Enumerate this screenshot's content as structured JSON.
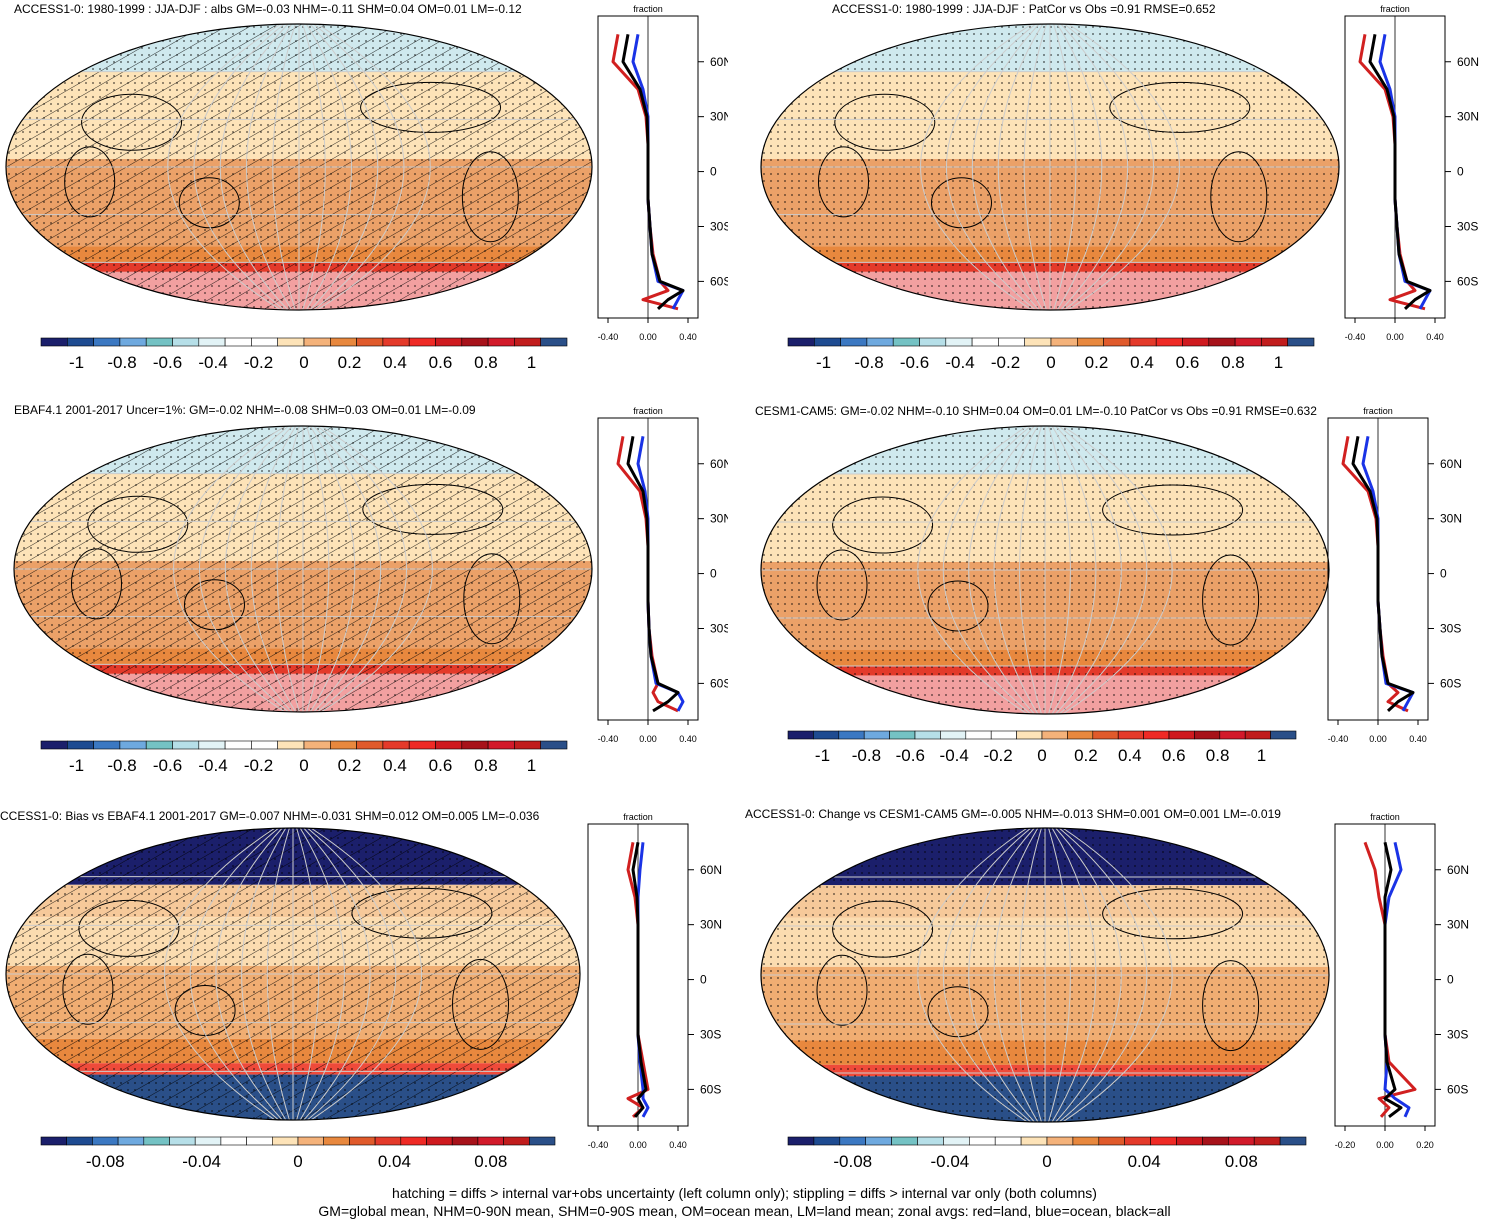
{
  "colors": {
    "palette": [
      "#1b1f6b",
      "#1e4b91",
      "#3b78c2",
      "#6ea9df",
      "#74c2c4",
      "#b6dfe8",
      "#e2f3f6",
      "#ffffff",
      "#ffffff",
      "#fde3b8",
      "#f4b27a",
      "#e8883e",
      "#e05a2b",
      "#e43a2a",
      "#ef2a25",
      "#cf1a1f",
      "#a7121a",
      "#d21a2a",
      "#c11d1d",
      "#2a4f88"
    ],
    "land_line": "#d12020",
    "ocean_line": "#1a33e6",
    "all_line": "#000000",
    "band_high_lat": "#fde3b8",
    "band_mid": "#fde3b8",
    "band_trop": "#e89a5a",
    "band_south": "#e8883e",
    "band_antarctic": "#e43a2a",
    "panel_bias": "#e8a060",
    "panel_blue": "#1b1f6b"
  },
  "panels": [
    {
      "title": "ACCESS1-0: 1980-1999 : JJA-DJF : albs GM=-0.03 NHM=-0.11 SHM=0.04 OM=0.01 LM=-0.12",
      "hatch": true,
      "stipple": true,
      "kind": "mean"
    },
    {
      "title": "ACCESS1-0: 1980-1999 : JJA-DJF : PatCor vs Obs =0.91 RMSE=0.652",
      "hatch": false,
      "stipple": true,
      "kind": "mean"
    },
    {
      "title": "EBAF4.1 2001-2017 Uncer=1%: GM=-0.02 NHM=-0.08 SHM=0.03 OM=0.01 LM=-0.09",
      "hatch": true,
      "stipple": true,
      "kind": "mean"
    },
    {
      "title": "CESM1-CAM5: GM=-0.02 NHM=-0.10 SHM=0.04 OM=0.01 LM=-0.10 PatCor vs Obs =0.91 RMSE=0.632",
      "hatch": false,
      "stipple": true,
      "kind": "mean"
    },
    {
      "title": "CCESS1-0: Bias vs EBAF4.1 2001-2017 GM=-0.007 NHM=-0.031 SHM=0.012 OM=0.005 LM=-0.036",
      "hatch": true,
      "stipple": true,
      "kind": "diff"
    },
    {
      "title": "ACCESS1-0: Change vs CESM1-CAM5 GM=-0.005 NHM=-0.013 SHM=0.001 OM=0.001 LM=-0.019",
      "hatch": false,
      "stipple": true,
      "kind": "diff"
    }
  ],
  "zonal_axes": [
    {
      "ylabel_top": "fraction",
      "xticks": [
        "-0.40",
        "0.00",
        "0.40"
      ],
      "yticks": [
        "60N",
        "30N",
        "0",
        "30S",
        "60S"
      ]
    },
    {
      "ylabel_top": "fraction",
      "xticks": [
        "-0.40",
        "0.00",
        "0.40"
      ],
      "yticks": [
        "60N",
        "30N",
        "0",
        "30S",
        "60S"
      ]
    },
    {
      "ylabel_top": "fraction",
      "xticks": [
        "-0.40",
        "0.00",
        "0.40"
      ],
      "yticks": [
        "60N",
        "30N",
        "0",
        "30S",
        "60S"
      ]
    },
    {
      "ylabel_top": "fraction",
      "xticks": [
        "-0.40",
        "0.00",
        "0.40"
      ],
      "yticks": [
        "60N",
        "30N",
        "0",
        "30S",
        "60S"
      ]
    },
    {
      "ylabel_top": "fraction",
      "xticks": [
        "-0.40",
        "0.00",
        "0.40"
      ],
      "yticks": [
        "60N",
        "30N",
        "0",
        "30S",
        "60S"
      ]
    },
    {
      "ylabel_top": "fraction",
      "xticks": [
        "-0.20",
        "0.00",
        "0.20"
      ],
      "yticks": [
        "60N",
        "30N",
        "0",
        "30S",
        "60S"
      ]
    }
  ],
  "colorbars": [
    {
      "labels": [
        "-1",
        "-0.8",
        "-0.6",
        "-0.4",
        "-0.2",
        "0",
        "0.2",
        "0.4",
        "0.6",
        "0.8",
        "1"
      ]
    },
    {
      "labels": [
        "-1",
        "-0.8",
        "-0.6",
        "-0.4",
        "-0.2",
        "0",
        "0.2",
        "0.4",
        "0.6",
        "0.8",
        "1"
      ]
    },
    {
      "labels": [
        "-1",
        "-0.8",
        "-0.6",
        "-0.4",
        "-0.2",
        "0",
        "0.2",
        "0.4",
        "0.6",
        "0.8",
        "1"
      ]
    },
    {
      "labels": [
        "-1",
        "-0.8",
        "-0.6",
        "-0.4",
        "-0.2",
        "0",
        "0.2",
        "0.4",
        "0.6",
        "0.8",
        "1"
      ]
    },
    {
      "labels": [
        "-0.08",
        "-0.04",
        "0",
        "0.04",
        "0.08"
      ]
    },
    {
      "labels": [
        "-0.08",
        "-0.04",
        "0",
        "0.04",
        "0.08"
      ]
    }
  ],
  "footer": {
    "line1": "hatching = diffs > internal var+obs uncertainty (left column only); stippling = diffs > internal var only (both columns)",
    "line2": "GM=global mean, NHM=0-90N mean, SHM=0-90S mean, OM=ocean mean, LM=land mean; zonal avgs: red=land, blue=ocean, black=all"
  },
  "chart_data": [
    {
      "type": "heatmap",
      "title": "ACCESS1-0: 1980-1999 : JJA-DJF : albs GM=-0.03 NHM=-0.11 SHM=0.04 OM=0.01 LM=-0.12",
      "zonal_lat": [
        75,
        60,
        45,
        30,
        15,
        0,
        -15,
        -30,
        -45,
        -60,
        -65,
        -70,
        -75
      ],
      "zonal_land": [
        -0.3,
        -0.35,
        -0.1,
        -0.02,
        0.0,
        0.0,
        0.0,
        0.02,
        0.05,
        0.12,
        0.2,
        -0.05,
        0.3
      ],
      "zonal_ocean": [
        -0.1,
        -0.15,
        -0.05,
        0.0,
        0.0,
        0.0,
        0.0,
        0.02,
        0.04,
        0.1,
        0.35,
        0.3,
        0.25
      ],
      "zonal_all": [
        -0.2,
        -0.25,
        -0.08,
        -0.01,
        0.0,
        0.0,
        0.0,
        0.02,
        0.04,
        0.12,
        0.35,
        0.2,
        0.1
      ],
      "xlim": [
        -0.5,
        0.5
      ],
      "colorbar": [
        -1,
        1
      ]
    },
    {
      "type": "heatmap",
      "title": "ACCESS1-0: 1980-1999 : JJA-DJF : PatCor vs Obs =0.91 RMSE=0.652",
      "zonal_lat": [
        75,
        60,
        45,
        30,
        15,
        0,
        -15,
        -30,
        -45,
        -60,
        -65,
        -70,
        -75
      ],
      "zonal_land": [
        -0.3,
        -0.35,
        -0.1,
        -0.02,
        0.0,
        0.0,
        0.0,
        0.02,
        0.05,
        0.12,
        0.2,
        -0.05,
        0.3
      ],
      "zonal_ocean": [
        -0.1,
        -0.15,
        -0.05,
        0.0,
        0.0,
        0.0,
        0.0,
        0.02,
        0.04,
        0.1,
        0.35,
        0.3,
        0.25
      ],
      "zonal_all": [
        -0.2,
        -0.25,
        -0.08,
        -0.01,
        0.0,
        0.0,
        0.0,
        0.02,
        0.04,
        0.12,
        0.35,
        0.2,
        0.1
      ],
      "xlim": [
        -0.5,
        0.5
      ],
      "colorbar": [
        -1,
        1
      ]
    },
    {
      "type": "heatmap",
      "title": "EBAF4.1 2001-2017 Uncer=1%: GM=-0.02 NHM=-0.08 SHM=0.03 OM=0.01 LM=-0.09",
      "zonal_lat": [
        75,
        60,
        45,
        30,
        15,
        0,
        -15,
        -30,
        -45,
        -60,
        -65,
        -70,
        -75
      ],
      "zonal_land": [
        -0.25,
        -0.3,
        -0.08,
        -0.02,
        0.0,
        0.0,
        0.0,
        0.01,
        0.04,
        0.1,
        0.05,
        0.1,
        0.3
      ],
      "zonal_ocean": [
        -0.05,
        -0.1,
        -0.03,
        0.0,
        0.0,
        0.0,
        0.0,
        0.01,
        0.03,
        0.08,
        0.3,
        0.35,
        0.3
      ],
      "zonal_all": [
        -0.15,
        -0.2,
        -0.05,
        -0.01,
        0.0,
        0.0,
        0.0,
        0.01,
        0.03,
        0.1,
        0.3,
        0.2,
        0.05
      ],
      "xlim": [
        -0.5,
        0.5
      ],
      "colorbar": [
        -1,
        1
      ]
    },
    {
      "type": "heatmap",
      "title": "CESM1-CAM5: GM=-0.02 NHM=-0.10 SHM=0.04 OM=0.01 LM=-0.10 PatCor vs Obs =0.91 RMSE=0.632",
      "zonal_lat": [
        75,
        60,
        45,
        30,
        15,
        0,
        -15,
        -30,
        -45,
        -60,
        -65,
        -70,
        -75
      ],
      "zonal_land": [
        -0.3,
        -0.35,
        -0.1,
        -0.02,
        0.0,
        0.0,
        0.0,
        0.02,
        0.05,
        0.1,
        0.2,
        0.1,
        0.3
      ],
      "zonal_ocean": [
        -0.1,
        -0.15,
        -0.05,
        0.0,
        0.0,
        0.0,
        0.0,
        0.02,
        0.04,
        0.08,
        0.35,
        0.3,
        0.25
      ],
      "zonal_all": [
        -0.2,
        -0.25,
        -0.08,
        -0.01,
        0.0,
        0.0,
        0.0,
        0.02,
        0.04,
        0.1,
        0.35,
        0.2,
        0.1
      ],
      "xlim": [
        -0.5,
        0.5
      ],
      "colorbar": [
        -1,
        1
      ]
    },
    {
      "type": "heatmap",
      "title": "CCESS1-0: Bias vs EBAF4.1 2001-2017 GM=-0.007 NHM=-0.031 SHM=0.012 OM=0.005 LM=-0.036",
      "zonal_lat": [
        75,
        60,
        45,
        30,
        15,
        0,
        -15,
        -30,
        -45,
        -60,
        -65,
        -70,
        -75
      ],
      "zonal_land": [
        -0.05,
        -0.1,
        -0.03,
        0.0,
        0.0,
        0.0,
        0.0,
        0.0,
        0.05,
        0.1,
        -0.1,
        0.05,
        -0.05
      ],
      "zonal_ocean": [
        0.05,
        0.02,
        0.0,
        0.0,
        0.0,
        0.0,
        0.0,
        0.0,
        0.02,
        0.05,
        0.05,
        0.1,
        0.05
      ],
      "zonal_all": [
        0.0,
        -0.05,
        -0.01,
        0.0,
        0.0,
        0.0,
        0.0,
        0.0,
        0.03,
        0.08,
        0.0,
        0.05,
        -0.03
      ],
      "xlim": [
        -0.5,
        0.5
      ],
      "colorbar": [
        -0.1,
        0.1
      ]
    },
    {
      "type": "heatmap",
      "title": "ACCESS1-0: Change vs CESM1-CAM5 GM=-0.005 NHM=-0.013 SHM=0.001 OM=0.001 LM=-0.019",
      "zonal_lat": [
        75,
        60,
        45,
        30,
        15,
        0,
        -15,
        -30,
        -45,
        -60,
        -65,
        -70,
        -75
      ],
      "zonal_land": [
        -0.1,
        -0.05,
        -0.03,
        0.0,
        0.0,
        0.0,
        0.0,
        0.0,
        0.02,
        0.15,
        -0.03,
        0.02,
        -0.02
      ],
      "zonal_ocean": [
        0.05,
        0.08,
        0.02,
        0.0,
        0.0,
        0.0,
        0.0,
        0.0,
        0.01,
        0.0,
        0.05,
        0.12,
        0.1
      ],
      "zonal_all": [
        0.0,
        0.03,
        0.0,
        0.0,
        0.0,
        0.0,
        0.0,
        0.0,
        0.01,
        0.05,
        0.0,
        0.08,
        0.02
      ],
      "xlim": [
        -0.25,
        0.25
      ],
      "colorbar": [
        -0.1,
        0.1
      ]
    }
  ]
}
